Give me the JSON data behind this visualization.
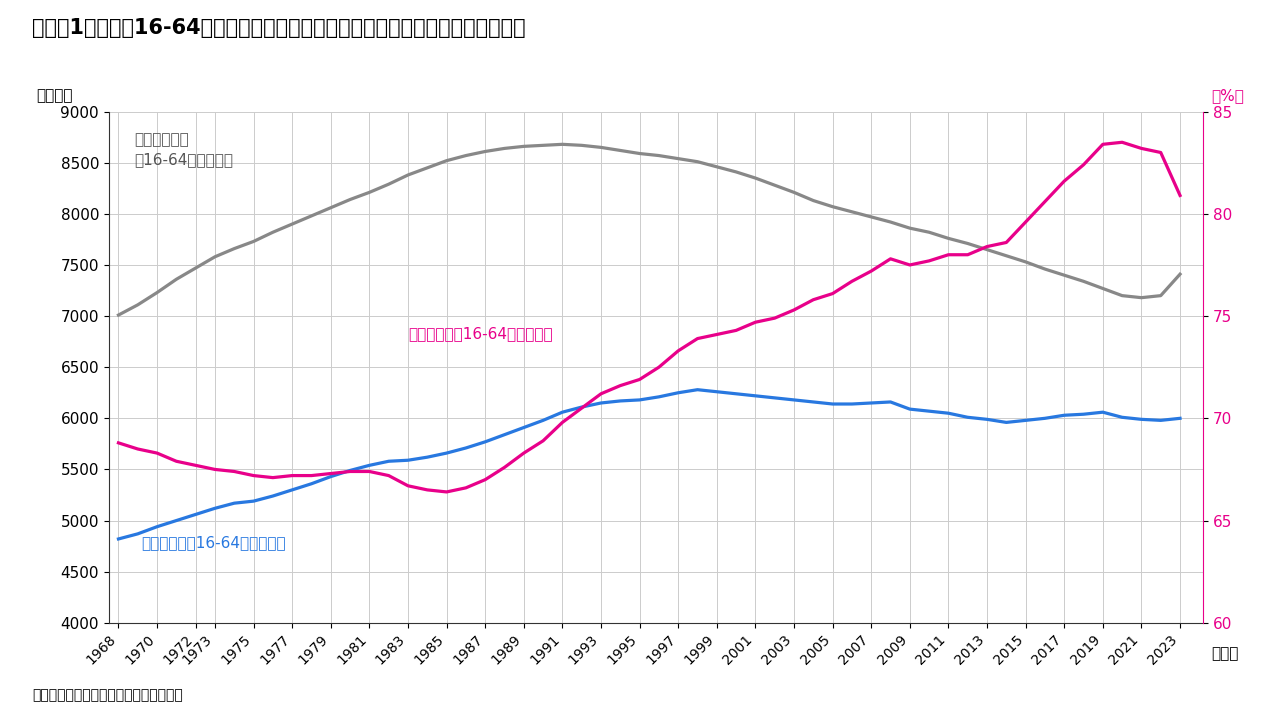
{
  "title": "（図表1）日本：16-64歳の年齢グループにおける人口と労働力人口、労働参加率",
  "ylabel_left": "（万人）",
  "ylabel_right": "（%）",
  "xlabel": "（年）",
  "source": "（出所）厚生労働省よりインベスコ作成",
  "label_population_l1": "生産年齢人口",
  "label_population_l2": "（16-64歳）、左軸",
  "label_labor": "労働力人口（16-64歳）、左軸",
  "label_rate": "労働参加率（16-64歳）、右軸",
  "color_population": "#888888",
  "color_labor": "#2878e0",
  "color_rate": "#e8008a",
  "bg_color": "#ffffff",
  "ylim_left": [
    4000,
    9000
  ],
  "ylim_right": [
    60,
    85
  ],
  "yticks_left": [
    4000,
    4500,
    5000,
    5500,
    6000,
    6500,
    7000,
    7500,
    8000,
    8500,
    9000
  ],
  "yticks_right": [
    60,
    65,
    70,
    75,
    80,
    85
  ],
  "xtick_years": [
    1968,
    1970,
    1972,
    1973,
    1975,
    1977,
    1979,
    1981,
    1983,
    1985,
    1987,
    1989,
    1991,
    1993,
    1995,
    1997,
    1999,
    2001,
    2003,
    2005,
    2007,
    2009,
    2011,
    2013,
    2015,
    2017,
    2019,
    2021,
    2023
  ],
  "years": [
    1968,
    1969,
    1970,
    1971,
    1972,
    1973,
    1974,
    1975,
    1976,
    1977,
    1978,
    1979,
    1980,
    1981,
    1982,
    1983,
    1984,
    1985,
    1986,
    1987,
    1988,
    1989,
    1990,
    1991,
    1992,
    1993,
    1994,
    1995,
    1996,
    1997,
    1998,
    1999,
    2000,
    2001,
    2002,
    2003,
    2004,
    2005,
    2006,
    2007,
    2008,
    2009,
    2010,
    2011,
    2012,
    2013,
    2014,
    2015,
    2016,
    2017,
    2018,
    2019,
    2020,
    2021,
    2022,
    2023
  ],
  "population": [
    7010,
    7110,
    7230,
    7360,
    7470,
    7580,
    7660,
    7730,
    7820,
    7900,
    7980,
    8060,
    8140,
    8210,
    8290,
    8380,
    8450,
    8520,
    8570,
    8610,
    8640,
    8660,
    8670,
    8680,
    8670,
    8650,
    8620,
    8590,
    8570,
    8540,
    8510,
    8460,
    8410,
    8350,
    8280,
    8210,
    8130,
    8070,
    8020,
    7970,
    7920,
    7860,
    7820,
    7760,
    7710,
    7650,
    7590,
    7530,
    7460,
    7400,
    7340,
    7270,
    7200,
    7180,
    7200,
    7410
  ],
  "labor_force": [
    4820,
    4870,
    4940,
    5000,
    5060,
    5120,
    5170,
    5190,
    5240,
    5300,
    5360,
    5430,
    5490,
    5540,
    5580,
    5590,
    5620,
    5660,
    5710,
    5770,
    5840,
    5910,
    5980,
    6060,
    6110,
    6150,
    6170,
    6180,
    6210,
    6250,
    6280,
    6260,
    6240,
    6220,
    6200,
    6180,
    6160,
    6140,
    6140,
    6150,
    6160,
    6090,
    6070,
    6050,
    6010,
    5990,
    5960,
    5980,
    6000,
    6030,
    6040,
    6060,
    6010,
    5990,
    5980,
    6000
  ],
  "labor_rate": [
    68.8,
    68.5,
    68.3,
    67.9,
    67.7,
    67.5,
    67.4,
    67.2,
    67.1,
    67.2,
    67.2,
    67.3,
    67.4,
    67.4,
    67.2,
    66.7,
    66.5,
    66.4,
    66.6,
    67.0,
    67.6,
    68.3,
    68.9,
    69.8,
    70.5,
    71.2,
    71.6,
    71.9,
    72.5,
    73.3,
    73.9,
    74.1,
    74.3,
    74.7,
    74.9,
    75.3,
    75.8,
    76.1,
    76.7,
    77.2,
    77.8,
    77.5,
    77.7,
    78.0,
    78.0,
    78.4,
    78.6,
    79.6,
    80.6,
    81.6,
    82.4,
    83.4,
    83.5,
    83.2,
    83.0,
    80.9
  ]
}
